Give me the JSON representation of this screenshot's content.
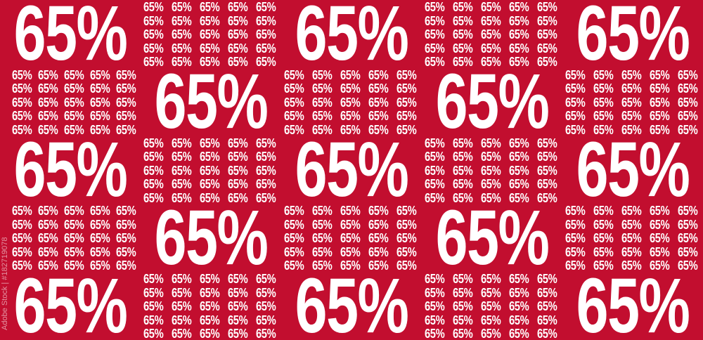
{
  "big_label": "65%",
  "small_label": "65%",
  "colors": {
    "background": "#c20e2f",
    "text": "#ffffff"
  },
  "watermark": "Adobe Stock | #182719078"
}
